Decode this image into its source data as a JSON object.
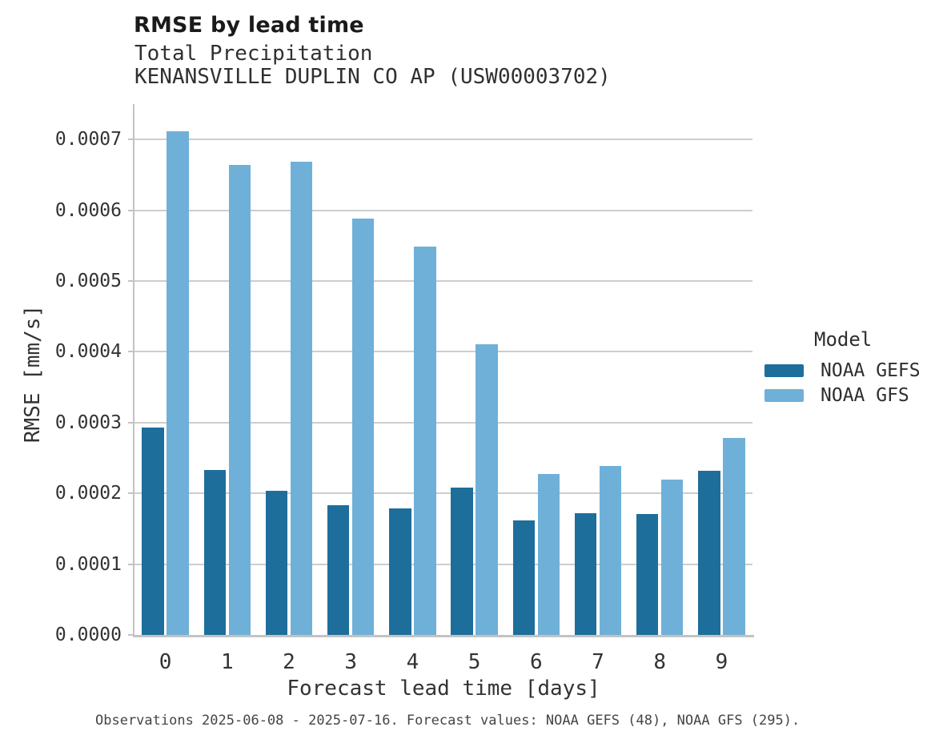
{
  "header": {
    "title": "RMSE by lead time",
    "subtitle": "Total Precipitation",
    "station": "KENANSVILLE DUPLIN CO AP (USW00003702)"
  },
  "chart_data": {
    "type": "bar",
    "title": "RMSE by lead time",
    "subtitle": "Total Precipitation",
    "station": "KENANSVILLE DUPLIN CO AP (USW00003702)",
    "xlabel": "Forecast lead time [days]",
    "ylabel": "RMSE [mm/s]",
    "categories": [
      "0",
      "1",
      "2",
      "3",
      "4",
      "5",
      "6",
      "7",
      "8",
      "9"
    ],
    "series": [
      {
        "name": "NOAA GEFS",
        "color": "#1e6e9c",
        "values": [
          0.000293,
          0.000233,
          0.000204,
          0.000183,
          0.000179,
          0.000208,
          0.000162,
          0.000172,
          0.000171,
          0.000232
        ]
      },
      {
        "name": "NOAA GFS",
        "color": "#6fb0d8",
        "values": [
          0.000712,
          0.000664,
          0.000668,
          0.000588,
          0.000549,
          0.000411,
          0.000227,
          0.000239,
          0.000219,
          0.000278
        ]
      }
    ],
    "ylim": [
      0,
      0.00075
    ],
    "yticks": [
      0.0,
      0.0001,
      0.0002,
      0.0003,
      0.0004,
      0.0005,
      0.0006,
      0.0007
    ],
    "ytick_format_decimals": 4,
    "grid": true,
    "legend_title": "Model",
    "legend_position": "right",
    "caption": "Observations 2025-06-08 - 2025-07-16. Forecast values: NOAA GEFS (48), NOAA GFS (295)."
  }
}
